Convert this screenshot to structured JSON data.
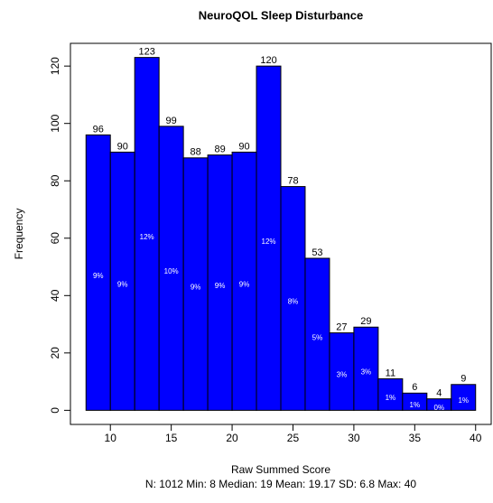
{
  "chart_data": {
    "type": "histogram",
    "title": "NeuroQOL Sleep Disturbance",
    "x_label": "Raw Summed Score",
    "y_label": "Frequency",
    "subtitle": "N: 1012 Min: 8  Median: 19  Mean: 19.17  SD: 6.8  Max: 40",
    "bins": [
      8,
      10,
      12,
      14,
      16,
      18,
      20,
      22,
      24,
      26,
      28,
      30,
      32,
      34,
      36,
      38,
      40
    ],
    "values": [
      96,
      90,
      123,
      99,
      88,
      89,
      90,
      120,
      78,
      53,
      27,
      29,
      11,
      6,
      4,
      9
    ],
    "percent_labels": [
      "9%",
      "9%",
      "12%",
      "10%",
      "9%",
      "9%",
      "9%",
      "12%",
      "8%",
      "5%",
      "3%",
      "3%",
      "1%",
      "1%",
      "0%",
      "1%"
    ],
    "color": "#0000ff",
    "xlim": [
      6.72,
      41.28
    ],
    "xticks": [
      10,
      15,
      20,
      25,
      30,
      35,
      40
    ],
    "ylim": [
      -4.92,
      127.92
    ],
    "yticks": [
      0,
      20,
      40,
      60,
      80,
      100,
      120
    ]
  }
}
